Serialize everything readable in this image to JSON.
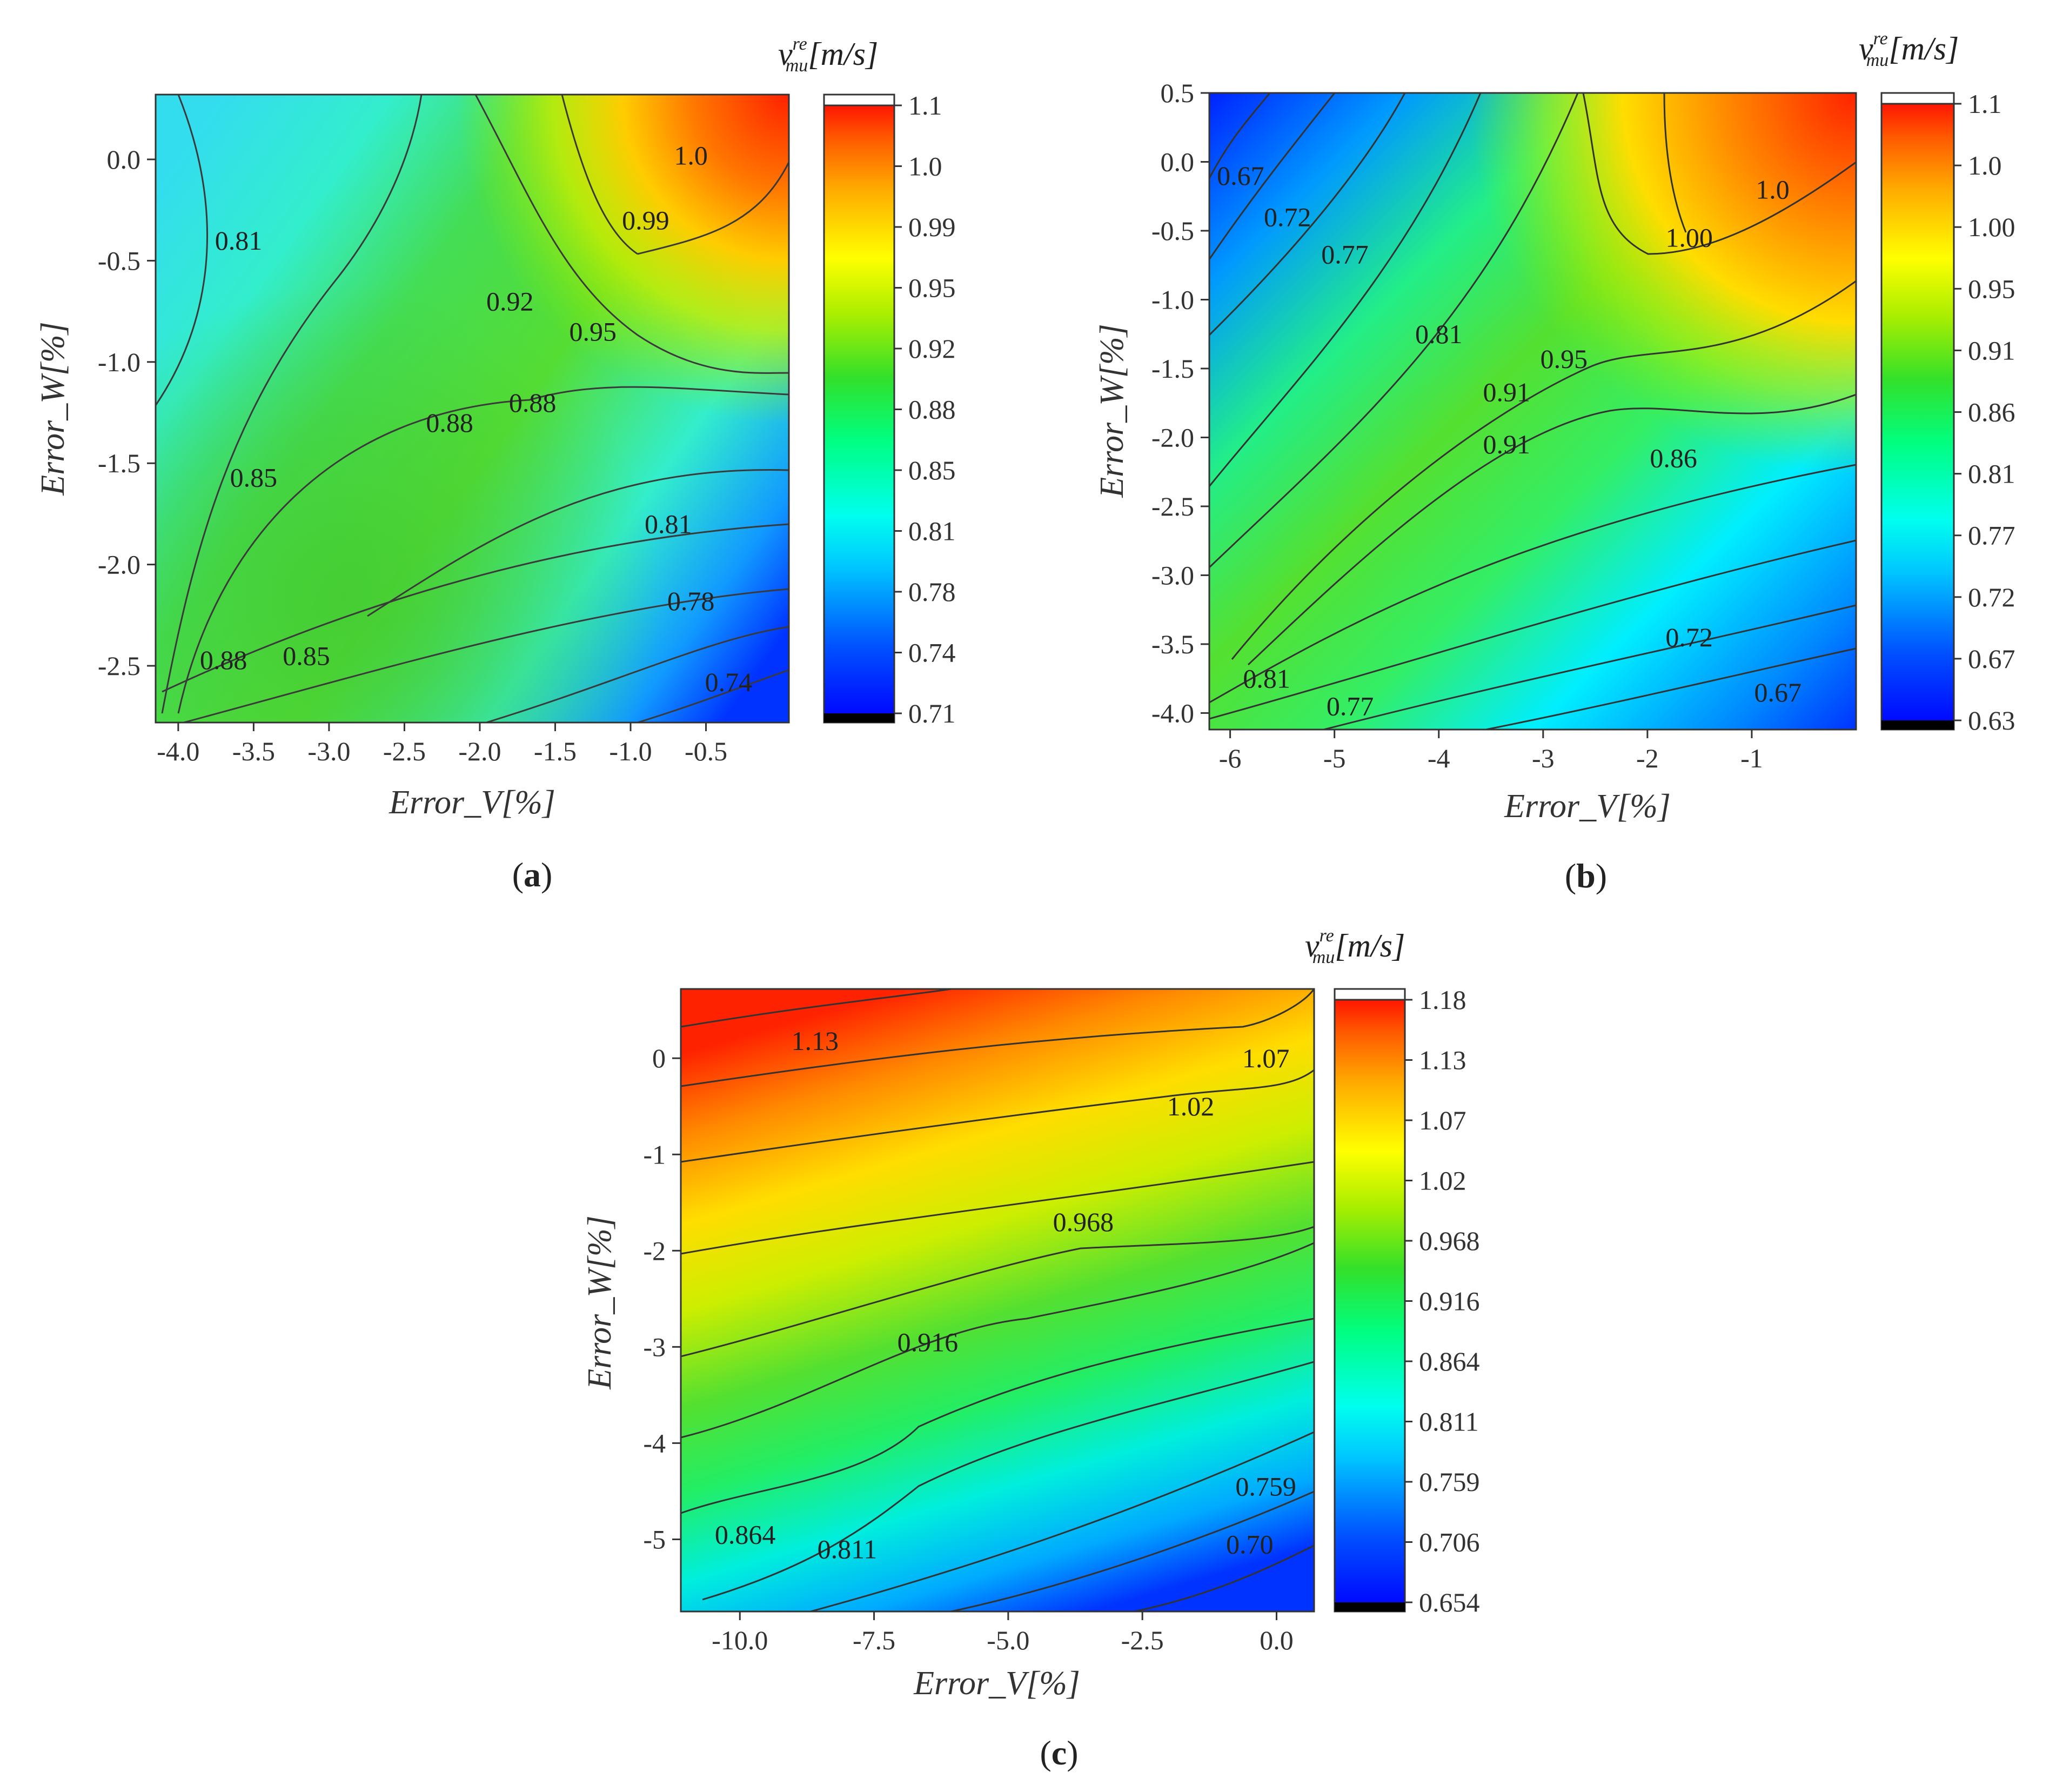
{
  "colors": {
    "jet": [
      "#0000ff",
      "#00a0ff",
      "#00ffff",
      "#00ff66",
      "#22dd22",
      "#aaee00",
      "#ffff00",
      "#ffaa00",
      "#ff5500",
      "#ff0000"
    ]
  },
  "chart_data": [
    {
      "type": "contour",
      "panel_letter": "a",
      "xlabel": "Error_V[%]",
      "ylabel": "Error_W[%]",
      "xlim": [
        -4.15,
        0.05
      ],
      "ylim": [
        -2.78,
        0.32
      ],
      "xticks": [
        "-4.0",
        "-3.5",
        "-3.0",
        "-2.5",
        "-2.0",
        "-1.5",
        "-1.0",
        "-0.5"
      ],
      "yticks": [
        "0.0",
        "-0.5",
        "-1.0",
        "-1.5",
        "-2.0",
        "-2.5"
      ],
      "colorbar_title": "v",
      "colorbar_sub": "re",
      "colorbar_subsub": "mu",
      "colorbar_unit": "[m/s]",
      "colorbar_ticks": [
        "1.1",
        "1.0",
        "0.99",
        "0.95",
        "0.92",
        "0.88",
        "0.85",
        "0.81",
        "0.78",
        "0.74",
        "0.71"
      ],
      "vmin": 0.71,
      "vmax": 1.1,
      "contour_labels": [
        {
          "text": "1.0",
          "x": -0.6,
          "y": 0.02
        },
        {
          "text": "0.99",
          "x": -0.9,
          "y": -0.3
        },
        {
          "text": "0.81",
          "x": -3.6,
          "y": -0.4
        },
        {
          "text": "0.92",
          "x": -1.8,
          "y": -0.7
        },
        {
          "text": "0.95",
          "x": -1.25,
          "y": -0.85
        },
        {
          "text": "0.88",
          "x": -2.2,
          "y": -1.3
        },
        {
          "text": "0.88",
          "x": -1.65,
          "y": -1.2
        },
        {
          "text": "0.85",
          "x": -3.5,
          "y": -1.57
        },
        {
          "text": "0.81",
          "x": -0.75,
          "y": -1.8
        },
        {
          "text": "0.78",
          "x": -0.6,
          "y": -2.18
        },
        {
          "text": "0.88",
          "x": -3.7,
          "y": -2.47
        },
        {
          "text": "0.85",
          "x": -3.15,
          "y": -2.45
        },
        {
          "text": "0.74",
          "x": -0.35,
          "y": -2.58
        }
      ]
    },
    {
      "type": "contour",
      "panel_letter": "b",
      "xlabel": "Error_V[%]",
      "ylabel": "Error_W[%]",
      "xlim": [
        -6.2,
        0.0
      ],
      "ylim": [
        -4.12,
        0.5
      ],
      "xticks": [
        "-6",
        "-5",
        "-4",
        "-3",
        "-2",
        "-1"
      ],
      "yticks": [
        "0.5",
        "0.0",
        "-0.5",
        "-1.0",
        "-1.5",
        "-2.0",
        "-2.5",
        "-3.0",
        "-3.5",
        "-4.0"
      ],
      "colorbar_title": "v",
      "colorbar_sub": "re",
      "colorbar_subsub": "mu",
      "colorbar_unit": "[m/s]",
      "colorbar_ticks": [
        "1.1",
        "1.0",
        "1.00",
        "0.95",
        "0.91",
        "0.86",
        "0.81",
        "0.77",
        "0.72",
        "0.67",
        "0.63"
      ],
      "vmin": 0.63,
      "vmax": 1.1,
      "contour_labels": [
        {
          "text": "0.67",
          "x": -5.9,
          "y": -0.1
        },
        {
          "text": "0.72",
          "x": -5.45,
          "y": -0.4
        },
        {
          "text": "0.77",
          "x": -4.9,
          "y": -0.67
        },
        {
          "text": "0.81",
          "x": -4.0,
          "y": -1.25
        },
        {
          "text": "1.0",
          "x": -0.8,
          "y": -0.2
        },
        {
          "text": "1.00",
          "x": -1.6,
          "y": -0.55
        },
        {
          "text": "0.95",
          "x": -2.8,
          "y": -1.43
        },
        {
          "text": "0.91",
          "x": -3.35,
          "y": -1.67
        },
        {
          "text": "0.91",
          "x": -3.35,
          "y": -2.05
        },
        {
          "text": "0.86",
          "x": -1.75,
          "y": -2.15
        },
        {
          "text": "0.72",
          "x": -1.6,
          "y": -3.45
        },
        {
          "text": "0.67",
          "x": -0.75,
          "y": -3.85
        },
        {
          "text": "0.81",
          "x": -5.65,
          "y": -3.75
        },
        {
          "text": "0.77",
          "x": -4.85,
          "y": -3.95
        }
      ]
    },
    {
      "type": "contour",
      "panel_letter": "c",
      "xlabel": "Error_V[%]",
      "ylabel": "Error_W[%]",
      "xlim": [
        -11.1,
        0.7
      ],
      "ylim": [
        -5.75,
        0.72
      ],
      "xticks": [
        "-10.0",
        "-7.5",
        "-5.0",
        "-2.5",
        "0.0"
      ],
      "yticks": [
        "0",
        "-1",
        "-2",
        "-3",
        "-4",
        "-5"
      ],
      "colorbar_title": "v",
      "colorbar_sub": "re",
      "colorbar_subsub": "mu",
      "colorbar_unit": "[m/s]",
      "colorbar_ticks": [
        "1.18",
        "1.13",
        "1.07",
        "1.02",
        "0.968",
        "0.916",
        "0.864",
        "0.811",
        "0.759",
        "0.706",
        "0.654"
      ],
      "vmin": 0.654,
      "vmax": 1.18,
      "contour_labels": [
        {
          "text": "1.13",
          "x": -8.6,
          "y": 0.18
        },
        {
          "text": "1.07",
          "x": -0.2,
          "y": 0.0
        },
        {
          "text": "1.02",
          "x": -1.6,
          "y": -0.5
        },
        {
          "text": "0.968",
          "x": -3.6,
          "y": -1.7
        },
        {
          "text": "0.916",
          "x": -6.5,
          "y": -2.95
        },
        {
          "text": "0.759",
          "x": -0.2,
          "y": -4.45
        },
        {
          "text": "0.864",
          "x": -9.9,
          "y": -4.95
        },
        {
          "text": "0.811",
          "x": -8.0,
          "y": -5.1
        },
        {
          "text": "0.70",
          "x": -0.5,
          "y": -5.05
        }
      ]
    }
  ]
}
